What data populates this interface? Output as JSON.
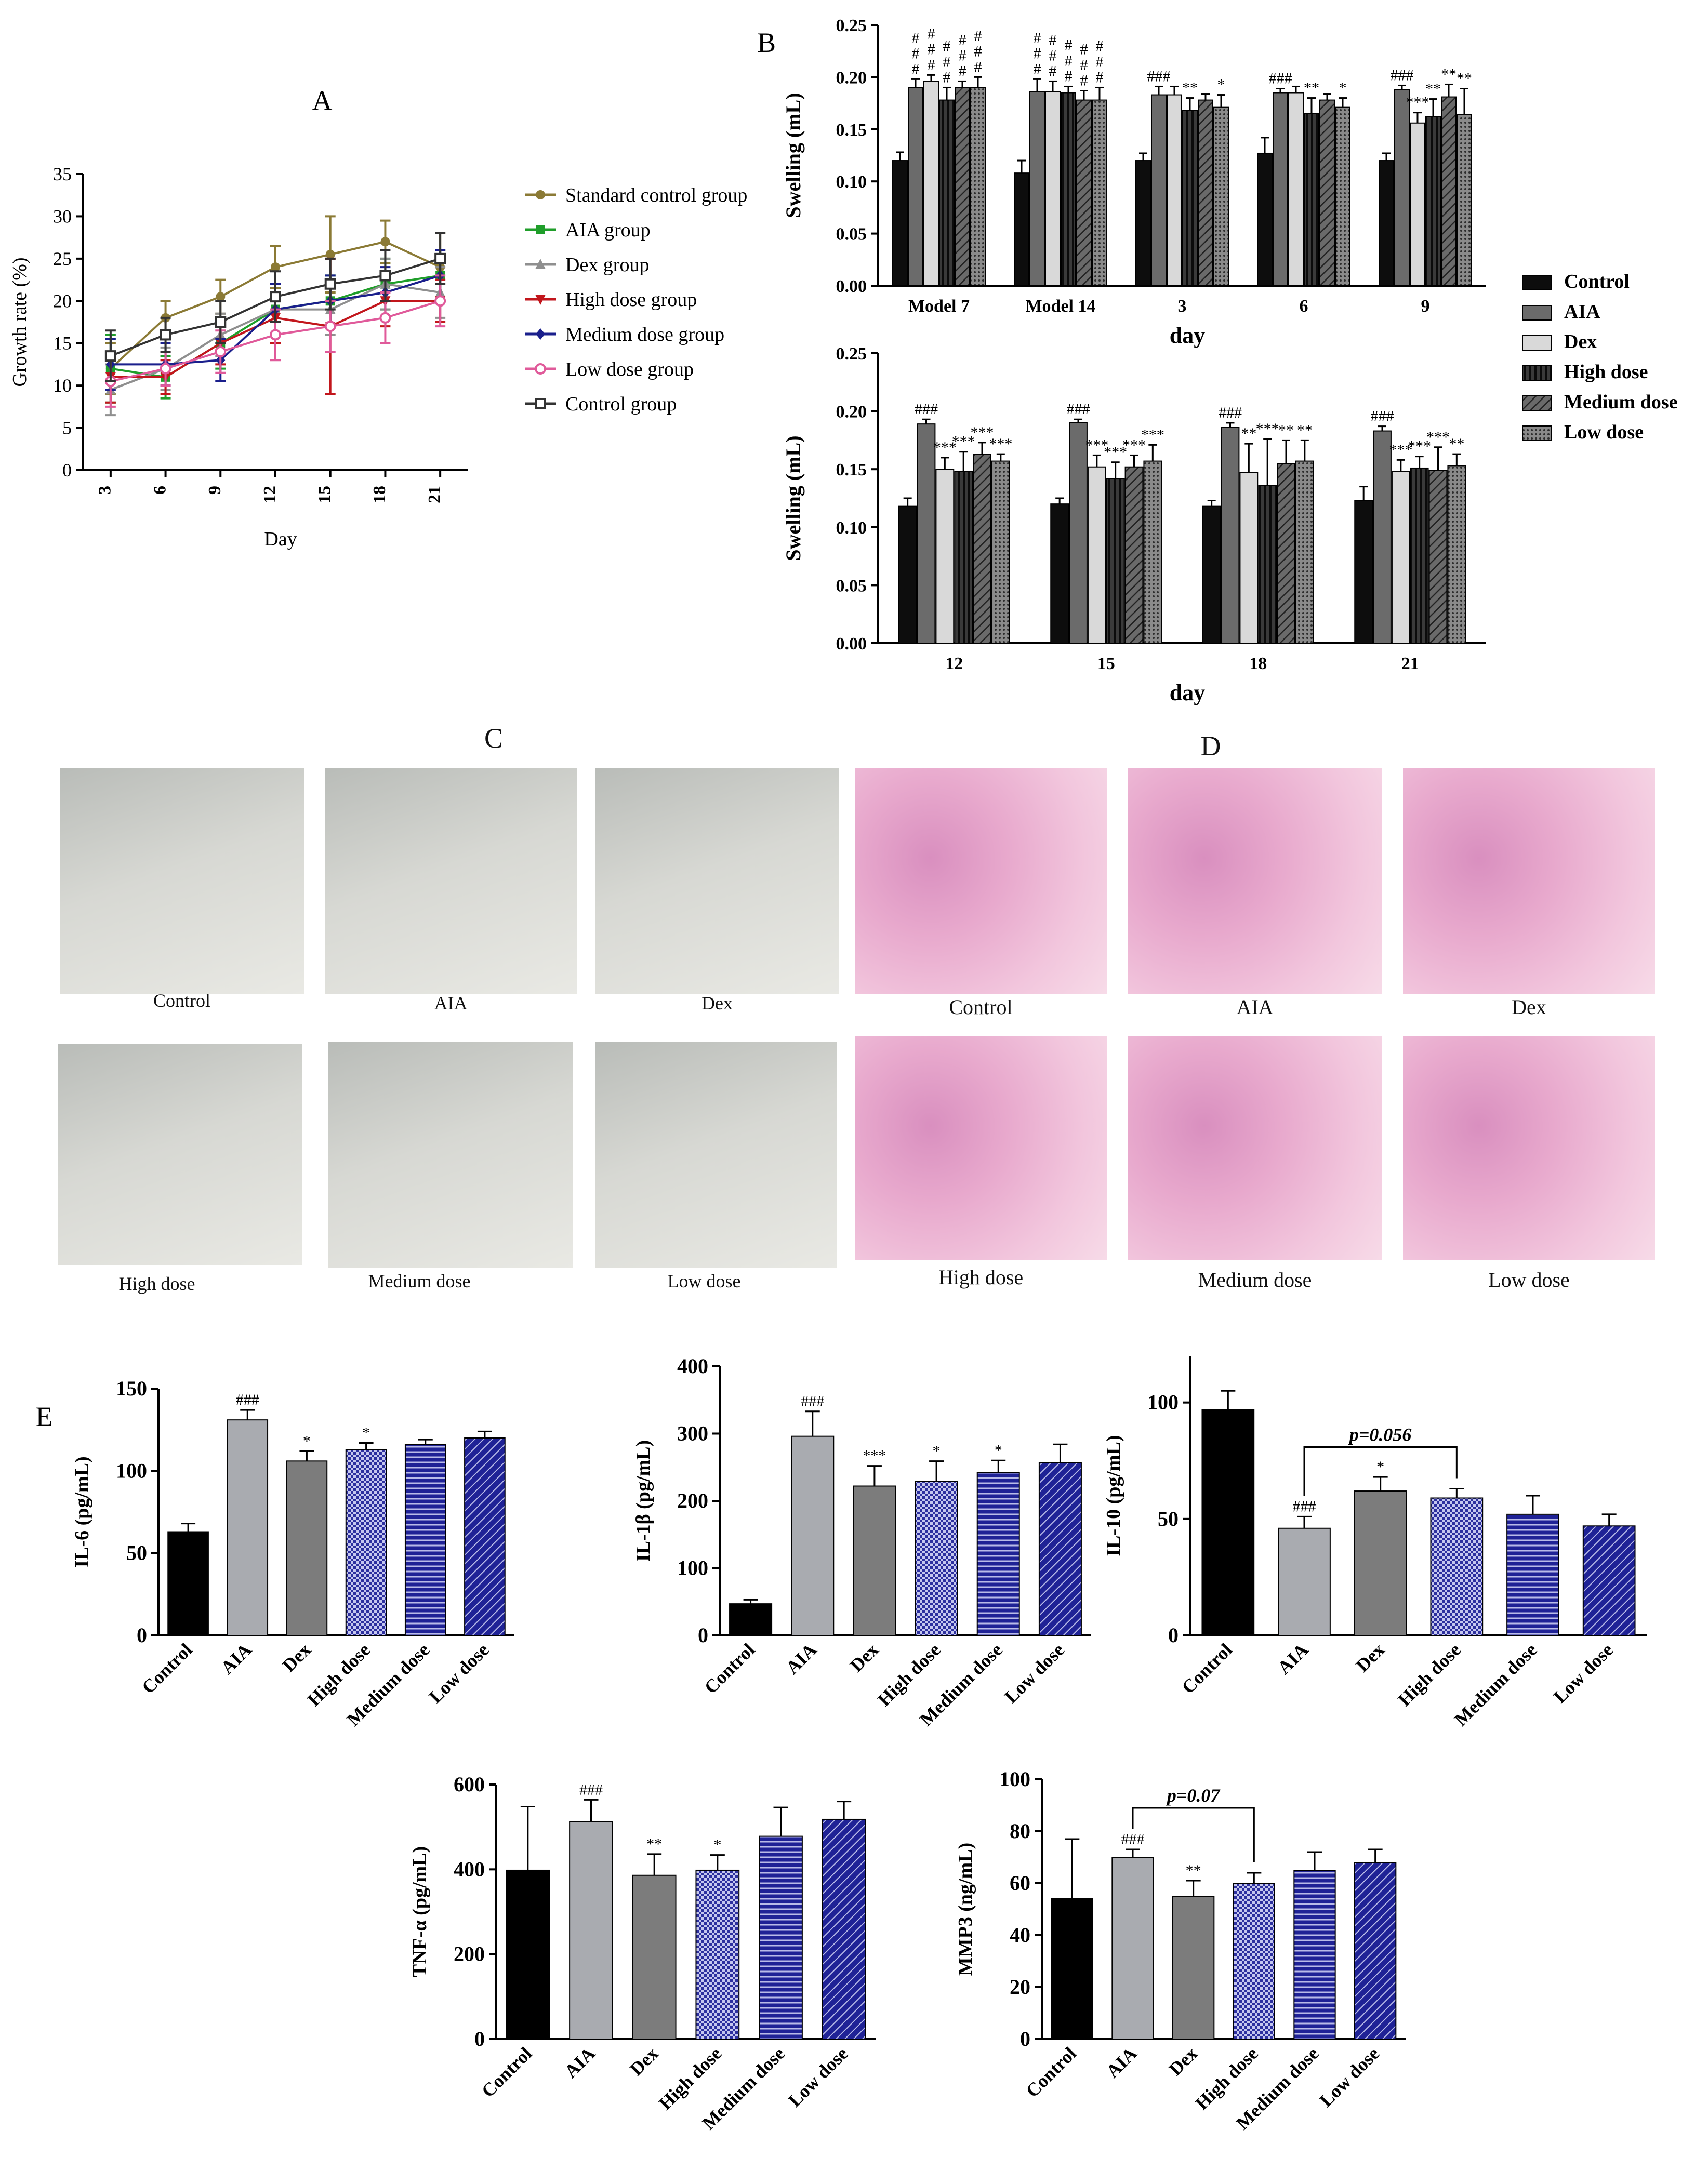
{
  "panel_labels": {
    "A": "A",
    "B": "B",
    "C": "C",
    "D": "D",
    "E": "E"
  },
  "colors": {
    "standard": "#8b7a35",
    "aia": "#1f9e2a",
    "dex": "#8f8f8f",
    "high": "#c2161c",
    "medium": "#1a1f8c",
    "low": "#e05a9a",
    "control_line": "#333333",
    "bar_control": "#0d0d0d",
    "bar_aia": "#6b6b6b",
    "bar_dex": "#d6d6d6",
    "bar_high": "#4a4a4a",
    "bar_medium": "#5c5c5c",
    "bar_low": "#7a7a7a",
    "e_control": "#000000",
    "e_aia": "#a9abb0",
    "e_dex": "#7c7c7c",
    "e_blue": "#26289a"
  },
  "photos_c": {
    "label": "C",
    "items": [
      {
        "caption": "Control"
      },
      {
        "caption": "AIA"
      },
      {
        "caption": "Dex"
      },
      {
        "caption": "High dose"
      },
      {
        "caption": "Medium dose"
      },
      {
        "caption": "Low dose"
      }
    ]
  },
  "photos_d": {
    "label": "D",
    "items": [
      {
        "caption": "Control"
      },
      {
        "caption": "AIA"
      },
      {
        "caption": "Dex"
      },
      {
        "caption": "High dose"
      },
      {
        "caption": "Medium dose"
      },
      {
        "caption": "Low dose"
      }
    ]
  },
  "chart_data": [
    {
      "id": "A",
      "type": "line",
      "title": "A",
      "xlabel": "Day",
      "ylabel": "Growth rate (%)",
      "x": [
        3,
        6,
        9,
        12,
        15,
        18,
        21
      ],
      "ylim": [
        0,
        35
      ],
      "yticks": [
        0,
        5,
        10,
        15,
        20,
        25,
        30,
        35
      ],
      "legend_position": "right",
      "series": [
        {
          "name": "Standard control group",
          "values": [
            12,
            18,
            20.5,
            24,
            25.5,
            27,
            24
          ],
          "errors": [
            3,
            2,
            2,
            2.5,
            4.5,
            2.5,
            4
          ],
          "color": "#8b7a35",
          "marker": "circle"
        },
        {
          "name": "AIA group",
          "values": [
            12,
            11,
            15,
            19,
            20,
            22,
            23
          ],
          "errors": [
            4,
            2.5,
            3,
            3,
            3,
            3,
            3
          ],
          "color": "#1f9e2a",
          "marker": "square"
        },
        {
          "name": "Dex group",
          "values": [
            9.5,
            12,
            16,
            19,
            19,
            22,
            21
          ],
          "errors": [
            3,
            2.5,
            2.5,
            3,
            3,
            3,
            3
          ],
          "color": "#8f8f8f",
          "marker": "triangle"
        },
        {
          "name": "High dose group",
          "values": [
            11,
            11,
            15,
            18,
            17,
            20,
            20
          ],
          "errors": [
            3,
            2,
            2.5,
            3,
            8,
            3,
            2.5
          ],
          "color": "#c2161c",
          "marker": "triangle-down"
        },
        {
          "name": "Medium dose group",
          "values": [
            12.5,
            12.5,
            13,
            19,
            20,
            21,
            23
          ],
          "errors": [
            3,
            2.5,
            2.5,
            3,
            3,
            3,
            3
          ],
          "color": "#1a1f8c",
          "marker": "diamond"
        },
        {
          "name": "Low dose group",
          "values": [
            10.5,
            12,
            14,
            16,
            17,
            18,
            20
          ],
          "errors": [
            3,
            2,
            2.5,
            3,
            3,
            3,
            3
          ],
          "color": "#e05a9a",
          "marker": "circle-open"
        },
        {
          "name": "Control group",
          "values": [
            13.5,
            16,
            17.5,
            20.5,
            22,
            23,
            25
          ],
          "errors": [
            3,
            2,
            2.5,
            3,
            3,
            3,
            3
          ],
          "color": "#333333",
          "marker": "square-open"
        }
      ]
    },
    {
      "id": "B1",
      "type": "bar",
      "title": "B",
      "xlabel": "day",
      "ylabel": "Swelling (mL)",
      "categories": [
        "Model 7",
        "Model 14",
        "3",
        "6",
        "9"
      ],
      "ylim": [
        0,
        0.25
      ],
      "yticks": [
        "0.00",
        "0.05",
        "0.10",
        "0.15",
        "0.20",
        "0.25"
      ],
      "series": [
        {
          "name": "Control",
          "values": [
            0.12,
            0.108,
            0.12,
            0.127,
            0.12
          ],
          "errors": [
            0.008,
            0.012,
            0.007,
            0.015,
            0.007
          ]
        },
        {
          "name": "AIA",
          "values": [
            0.19,
            0.186,
            0.183,
            0.185,
            0.188
          ],
          "errors": [
            0.008,
            0.012,
            0.008,
            0.004,
            0.004
          ]
        },
        {
          "name": "Dex",
          "values": [
            0.196,
            0.186,
            0.183,
            0.185,
            0.156
          ],
          "errors": [
            0.006,
            0.01,
            0.008,
            0.006,
            0.01
          ]
        },
        {
          "name": "High dose",
          "values": [
            0.178,
            0.185,
            0.168,
            0.165,
            0.162
          ],
          "errors": [
            0.012,
            0.006,
            0.012,
            0.015,
            0.017
          ]
        },
        {
          "name": "Medium dose",
          "values": [
            0.19,
            0.178,
            0.178,
            0.178,
            0.181
          ],
          "errors": [
            0.006,
            0.009,
            0.006,
            0.006,
            0.012
          ]
        },
        {
          "name": "Low dose",
          "values": [
            0.19,
            0.178,
            0.171,
            0.171,
            0.164
          ],
          "errors": [
            0.01,
            0.012,
            0.012,
            0.009,
            0.025
          ]
        }
      ],
      "annotations": [
        [
          "",
          "#\n#\n#",
          "#\n#\n#",
          "#\n#\n#",
          "#\n#\n#",
          "#\n#\n#"
        ],
        [
          "",
          "#\n#\n#",
          "#\n#\n#",
          "#\n#\n#",
          "#\n#\n#",
          "#\n#\n#"
        ],
        [
          "",
          "###",
          "",
          "**",
          "",
          "*"
        ],
        [
          "",
          "###",
          "",
          "**",
          "",
          "*"
        ],
        [
          "",
          "###",
          "***",
          "**",
          "**",
          "**"
        ]
      ]
    },
    {
      "id": "B2",
      "type": "bar",
      "xlabel": "day",
      "ylabel": "Swelling (mL)",
      "categories": [
        "12",
        "15",
        "18",
        "21"
      ],
      "ylim": [
        0,
        0.25
      ],
      "yticks": [
        "0.00",
        "0.05",
        "0.10",
        "0.15",
        "0.20",
        "0.25"
      ],
      "series": [
        {
          "name": "Control",
          "values": [
            0.118,
            0.12,
            0.118,
            0.123
          ],
          "errors": [
            0.007,
            0.005,
            0.005,
            0.012
          ]
        },
        {
          "name": "AIA",
          "values": [
            0.189,
            0.19,
            0.186,
            0.183
          ],
          "errors": [
            0.004,
            0.003,
            0.004,
            0.004
          ]
        },
        {
          "name": "Dex",
          "values": [
            0.15,
            0.152,
            0.147,
            0.148
          ],
          "errors": [
            0.01,
            0.01,
            0.025,
            0.01
          ]
        },
        {
          "name": "High dose",
          "values": [
            0.148,
            0.142,
            0.136,
            0.151
          ],
          "errors": [
            0.017,
            0.014,
            0.04,
            0.01
          ]
        },
        {
          "name": "Medium dose",
          "values": [
            0.163,
            0.152,
            0.155,
            0.149
          ],
          "errors": [
            0.01,
            0.01,
            0.02,
            0.02
          ]
        },
        {
          "name": "Low dose",
          "values": [
            0.157,
            0.157,
            0.157,
            0.153
          ],
          "errors": [
            0.006,
            0.014,
            0.018,
            0.01
          ]
        }
      ],
      "annotations": [
        [
          "",
          "###",
          "***",
          "***",
          "***",
          "***"
        ],
        [
          "",
          "###",
          "***",
          "***",
          "***",
          "***"
        ],
        [
          "",
          "###",
          "**",
          "***",
          "**",
          "**"
        ],
        [
          "",
          "###",
          "***",
          "***",
          "***",
          "**"
        ]
      ]
    },
    {
      "id": "E1",
      "type": "bar",
      "title": "E",
      "ylabel": "IL-6 (pg/mL)",
      "categories": [
        "Control",
        "AIA",
        "Dex",
        "High dose",
        "Medium dose",
        "Low dose"
      ],
      "values": [
        63,
        131,
        106,
        113,
        116,
        120
      ],
      "errors": [
        5,
        6,
        6,
        4,
        3,
        4
      ],
      "ylim": [
        0,
        150
      ],
      "yticks": [
        "0",
        "50",
        "100",
        "150"
      ],
      "annotations": [
        "",
        "###",
        "*",
        "*",
        "",
        ""
      ]
    },
    {
      "id": "E2",
      "type": "bar",
      "ylabel": "IL-1β (pg/mL)",
      "categories": [
        "Control",
        "AIA",
        "Dex",
        "High dose",
        "Medium dose",
        "Low dose"
      ],
      "values": [
        47,
        296,
        222,
        229,
        242,
        257
      ],
      "errors": [
        6,
        37,
        30,
        30,
        18,
        27
      ],
      "ylim": [
        0,
        400
      ],
      "yticks": [
        "0",
        "100",
        "200",
        "300",
        "400"
      ],
      "annotations": [
        "",
        "###",
        "***",
        "*",
        "*",
        ""
      ]
    },
    {
      "id": "E3",
      "type": "bar",
      "ylabel": "IL-10 (pg/mL)",
      "categories": [
        "Control",
        "AIA",
        "Dex",
        "High dose",
        "Medium dose",
        "Low dose"
      ],
      "values": [
        97,
        46,
        62,
        59,
        52,
        47
      ],
      "errors": [
        8,
        5,
        6,
        4,
        8,
        5
      ],
      "ylim": [
        0,
        120
      ],
      "yticks": [
        "0",
        "50",
        "100"
      ],
      "annotations": [
        "",
        "###",
        "*",
        "",
        "",
        ""
      ],
      "bracket": {
        "from": 1,
        "to": 3,
        "label": "p=0.056"
      }
    },
    {
      "id": "E4",
      "type": "bar",
      "ylabel": "TNF-α (pg/mL)",
      "categories": [
        "Control",
        "AIA",
        "Dex",
        "High dose",
        "Medium dose",
        "Low dose"
      ],
      "values": [
        398,
        512,
        386,
        398,
        478,
        518
      ],
      "errors": [
        150,
        52,
        50,
        36,
        68,
        42
      ],
      "ylim": [
        0,
        600
      ],
      "yticks": [
        "0",
        "200",
        "400",
        "600"
      ],
      "annotations": [
        "",
        "###",
        "**",
        "*",
        "",
        ""
      ]
    },
    {
      "id": "E5",
      "type": "bar",
      "ylabel": "MMP3 (ng/mL)",
      "categories": [
        "Control",
        "AIA",
        "Dex",
        "High dose",
        "Medium dose",
        "Low dose"
      ],
      "values": [
        54,
        70,
        55,
        60,
        65,
        68
      ],
      "errors": [
        23,
        3,
        6,
        4,
        7,
        5
      ],
      "ylim": [
        0,
        100
      ],
      "yticks": [
        "0",
        "20",
        "40",
        "60",
        "80",
        "100"
      ],
      "annotations": [
        "",
        "###",
        "**",
        "",
        "",
        ""
      ],
      "bracket": {
        "from": 1,
        "to": 3,
        "label": "p=0.07"
      }
    }
  ]
}
